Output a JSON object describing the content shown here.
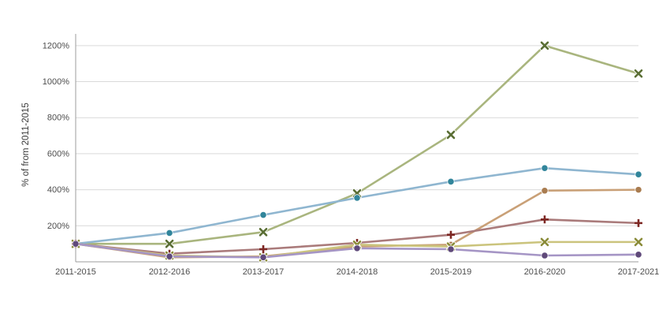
{
  "chart_data": {
    "type": "line",
    "title": "",
    "ylabel": "% of from 2011-2015",
    "xlabel": "",
    "categories": [
      "2011-2015",
      "2012-2016",
      "2013-2017",
      "2014-2018",
      "2015-2019",
      "2016-2020",
      "2017-2021"
    ],
    "y_ticks": [
      {
        "value": 200,
        "label": "200%"
      },
      {
        "value": 400,
        "label": "400%"
      },
      {
        "value": 600,
        "label": "600%"
      },
      {
        "value": 800,
        "label": "800%"
      },
      {
        "value": 1000,
        "label": "1000%"
      },
      {
        "value": 1200,
        "label": "1200%"
      }
    ],
    "ylim": [
      0,
      1300
    ],
    "grid": true,
    "legend": "none",
    "colors": {
      "axis": "#9c9c9c",
      "gridline": "#d9d9d9",
      "tick_text": "#4d4d4d",
      "background": "#ffffff"
    },
    "series": [
      {
        "name": "sage-green-series",
        "marker": "x",
        "line_color": "#a9b57e",
        "marker_color": "#5a6e34",
        "values": [
          100,
          100,
          165,
          380,
          705,
          1200,
          1045
        ]
      },
      {
        "name": "steel-blue-series",
        "marker": "circle",
        "line_color": "#8fb6d0",
        "marker_color": "#31859b",
        "values": [
          100,
          160,
          260,
          355,
          445,
          520,
          485
        ]
      },
      {
        "name": "tan-series",
        "marker": "circle",
        "line_color": "#c9a077",
        "marker_color": "#a97c50",
        "values": [
          100,
          25,
          30,
          85,
          95,
          395,
          400
        ]
      },
      {
        "name": "maroon-series",
        "marker": "plus",
        "line_color": "#aa7b7b",
        "marker_color": "#7d2723",
        "values": [
          100,
          45,
          70,
          105,
          150,
          235,
          215
        ]
      },
      {
        "name": "khaki-series",
        "marker": "x",
        "line_color": "#cbc47d",
        "marker_color": "#8a8b38",
        "values": [
          100,
          35,
          25,
          95,
          85,
          110,
          110
        ]
      },
      {
        "name": "purple-series",
        "marker": "circle",
        "line_color": "#a595c5",
        "marker_color": "#5f497a",
        "values": [
          100,
          30,
          25,
          75,
          70,
          35,
          40
        ]
      }
    ]
  }
}
